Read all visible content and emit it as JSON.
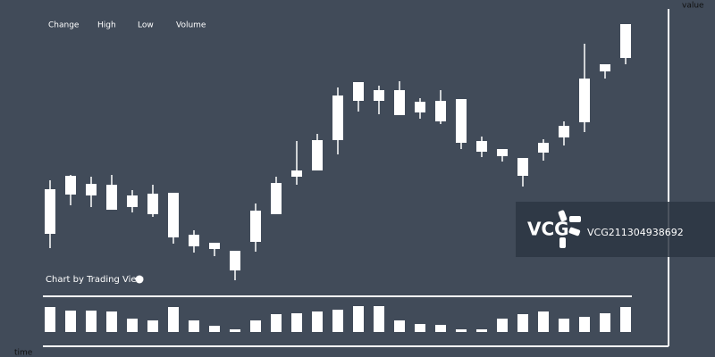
{
  "chart_data": {
    "type": "candlestick",
    "legend": [
      "Change",
      "High",
      "Low",
      "Volume"
    ],
    "y_axis_label": "value",
    "x_axis_label": "time",
    "credit": "Chart by Trading View",
    "color": "#ffffff",
    "ylim": [
      0,
      400
    ],
    "open": [
      138,
      182,
      194,
      193,
      181,
      183,
      184,
      137,
      128,
      119,
      129,
      160,
      202,
      209,
      243,
      287,
      299,
      299,
      286,
      287,
      289,
      242,
      233,
      223,
      229,
      246,
      263,
      320,
      335
    ],
    "high": [
      198,
      204,
      202,
      204,
      187,
      193,
      184,
      142,
      128,
      119,
      172,
      202,
      242,
      250,
      302,
      308,
      304,
      309,
      290,
      299,
      289,
      247,
      233,
      223,
      244,
      264,
      351,
      328,
      373
    ],
    "low": [
      122,
      170,
      168,
      165,
      162,
      157,
      127,
      117,
      113,
      86,
      118,
      160,
      193,
      209,
      227,
      275,
      272,
      271,
      267,
      261,
      233,
      224,
      219,
      191,
      220,
      237,
      252,
      312,
      328
    ],
    "close": [
      188,
      203,
      181,
      165,
      168,
      160,
      134,
      124,
      121,
      97,
      164,
      195,
      209,
      243,
      293,
      308,
      287,
      271,
      274,
      264,
      240,
      230,
      225,
      203,
      240,
      259,
      312,
      328,
      373
    ],
    "volume": [
      28,
      24,
      24,
      23,
      15,
      13,
      28,
      13,
      7,
      3,
      13,
      20,
      21,
      23,
      25,
      29,
      29,
      13,
      9,
      8,
      3,
      3,
      15,
      20,
      23,
      15,
      17,
      21,
      28
    ],
    "volume_ylim": [
      0,
      40
    ]
  },
  "watermark": {
    "logo": "VCG",
    "id": "VCG211304938692"
  }
}
